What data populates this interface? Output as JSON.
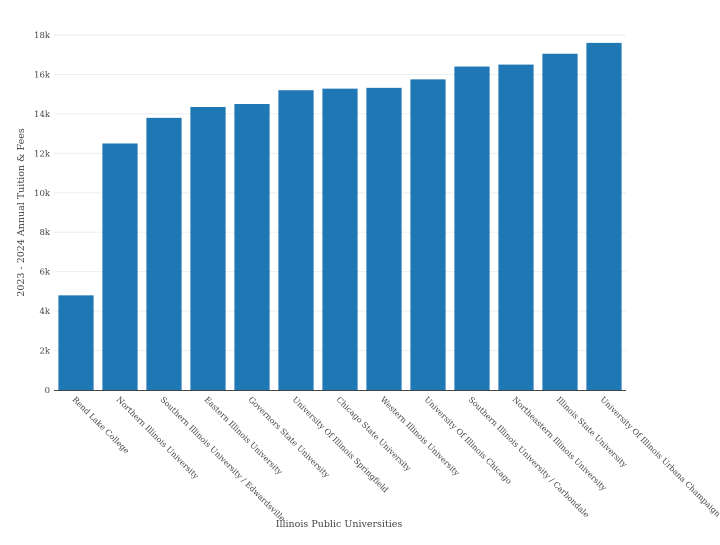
{
  "chart_data": {
    "type": "bar",
    "categories": [
      "Rend Lake College",
      "Northern Illinois University",
      "Southern Illinois University / Edwardsville",
      "Eastern Illinois University",
      "Governors State University",
      "University Of Illinois Springfield",
      "Chicago State University",
      "Western Illinois University",
      "University Of Illinois Chicago",
      "Southern Illinois University / Carbondale",
      "Northeastern Illinois University",
      "Illinois State University",
      "University Of Illinois Urbana Champaign"
    ],
    "values": [
      4800,
      12500,
      13800,
      14350,
      14500,
      15200,
      15280,
      15320,
      15750,
      16400,
      16500,
      17050,
      17600
    ],
    "ylabel": "2023 - 2024 Annual Tuition & Fees",
    "xlabel": "Illinois Public Universities",
    "ylim": [
      0,
      18000
    ],
    "yticks": [
      0,
      2000,
      4000,
      6000,
      8000,
      10000,
      12000,
      14000,
      16000,
      18000
    ],
    "ytick_labels": [
      "0",
      "2k",
      "4k",
      "6k",
      "8k",
      "10k",
      "12k",
      "14k",
      "16k",
      "18k"
    ],
    "grid": true,
    "bar_color": "#1f77b4"
  }
}
